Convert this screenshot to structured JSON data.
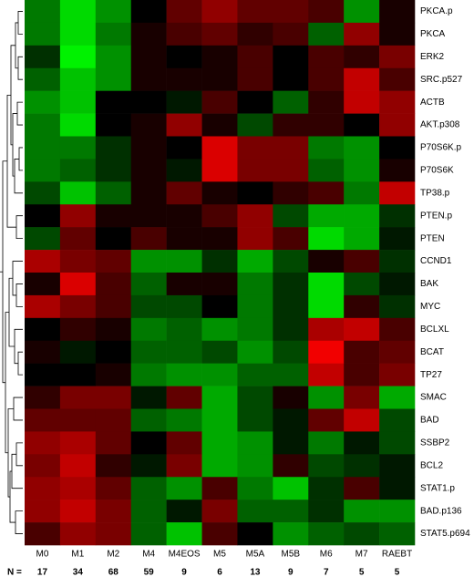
{
  "chart_data": {
    "type": "heatmap",
    "rows": [
      "PKCA.p",
      "PKCA",
      "ERK2",
      "SRC.p527",
      "ACTB",
      "AKT.p308",
      "P70S6K.p",
      "P70S6K",
      "TP38.p",
      "PTEN.p",
      "PTEN",
      "CCND1",
      "BAK",
      "MYC",
      "BCLXL",
      "BCAT",
      "TP27",
      "SMAC",
      "BAD",
      "SSBP2",
      "BCL2",
      "STAT1.p",
      "BAD.p136",
      "STAT5.p694"
    ],
    "columns": [
      "M0",
      "M1",
      "M2",
      "M4",
      "M4EOS",
      "M5",
      "M5A",
      "M5B",
      "M6",
      "M7",
      "RAEBT"
    ],
    "n_label": "N =",
    "counts": [
      17,
      34,
      68,
      59,
      9,
      6,
      13,
      9,
      7,
      5,
      5
    ],
    "zlim": [
      -1,
      1
    ],
    "color_low": "#00ff00",
    "color_mid": "#000000",
    "color_high": "#ff0000",
    "values": [
      [
        -0.5,
        -0.9,
        -0.6,
        0,
        0.4,
        0.6,
        0.4,
        0.4,
        0.3,
        -0.6,
        0.1
      ],
      [
        -0.5,
        -0.9,
        -0.5,
        0.1,
        0.3,
        0.4,
        0.2,
        0.3,
        -0.4,
        0.6,
        0.1
      ],
      [
        -0.2,
        -1,
        -0.6,
        0.1,
        0,
        0.1,
        0.3,
        0,
        0.3,
        0.2,
        0.5
      ],
      [
        -0.4,
        -0.8,
        -0.6,
        0.1,
        0.1,
        0.1,
        0.3,
        0,
        0.3,
        0.8,
        0.3
      ],
      [
        -0.6,
        -0.8,
        0,
        0,
        -0.1,
        0.3,
        0,
        -0.4,
        0.2,
        0.8,
        0.6
      ],
      [
        -0.5,
        -0.9,
        0,
        0.1,
        0.6,
        0.1,
        -0.3,
        0.2,
        0.2,
        0,
        0.6
      ],
      [
        -0.5,
        -0.5,
        -0.2,
        0.1,
        0,
        0.9,
        0.5,
        0.5,
        -0.5,
        -0.6,
        0
      ],
      [
        -0.5,
        -0.4,
        -0.2,
        0.1,
        -0.1,
        0.9,
        0.5,
        0.5,
        -0.4,
        -0.6,
        0.1
      ],
      [
        -0.3,
        -0.8,
        -0.4,
        0.1,
        0.4,
        0.1,
        0,
        0.2,
        0.3,
        -0.5,
        0.8
      ],
      [
        0,
        0.6,
        0.1,
        0.1,
        0.1,
        0.3,
        0.6,
        -0.3,
        -0.7,
        -0.7,
        -0.2
      ],
      [
        -0.3,
        0.4,
        0,
        0.3,
        0.1,
        0.1,
        0.6,
        0.3,
        -0.9,
        -0.7,
        -0.1
      ],
      [
        0.7,
        0.5,
        0.4,
        -0.6,
        -0.6,
        -0.2,
        -0.7,
        -0.3,
        0.1,
        0.3,
        -0.2
      ],
      [
        0.1,
        0.9,
        0.3,
        -0.4,
        0.1,
        0.1,
        -0.5,
        -0.2,
        -0.9,
        -0.3,
        -0.1
      ],
      [
        0.7,
        0.5,
        0.3,
        -0.3,
        -0.3,
        0,
        -0.5,
        -0.2,
        -0.9,
        0.2,
        -0.2
      ],
      [
        0,
        0.2,
        0.1,
        -0.5,
        -0.4,
        -0.6,
        -0.5,
        -0.2,
        0.7,
        0.8,
        0.3
      ],
      [
        0.1,
        -0.1,
        0,
        -0.4,
        -0.4,
        -0.3,
        -0.6,
        -0.3,
        1,
        0.3,
        0.4
      ],
      [
        0,
        0,
        0.1,
        -0.5,
        -0.6,
        -0.6,
        -0.4,
        -0.4,
        0.8,
        0.3,
        0.5
      ],
      [
        0.2,
        0.5,
        0.5,
        -0.1,
        0.4,
        -0.7,
        -0.3,
        0.1,
        -0.6,
        0.5,
        -0.7
      ],
      [
        0.4,
        0.4,
        0.4,
        -0.4,
        -0.5,
        -0.7,
        -0.3,
        -0.1,
        0.4,
        0.8,
        -0.3
      ],
      [
        0.6,
        0.7,
        0.4,
        0,
        0.4,
        -0.7,
        -0.6,
        -0.1,
        -0.5,
        -0.1,
        -0.3
      ],
      [
        0.5,
        0.8,
        0.2,
        -0.1,
        0.5,
        -0.7,
        -0.6,
        0.2,
        -0.3,
        -0.2,
        -0.1
      ],
      [
        0.6,
        0.7,
        0.4,
        -0.4,
        -0.6,
        0.3,
        -0.5,
        -0.8,
        -0.2,
        0.3,
        -0.1
      ],
      [
        0.6,
        0.8,
        0.5,
        -0.4,
        -0.1,
        0.5,
        -0.4,
        -0.4,
        -0.2,
        -0.6,
        -0.6
      ],
      [
        0.3,
        0.6,
        0.5,
        -0.4,
        -0.8,
        0.3,
        0,
        -0.6,
        -0.4,
        -0.3,
        -0.4
      ]
    ]
  }
}
